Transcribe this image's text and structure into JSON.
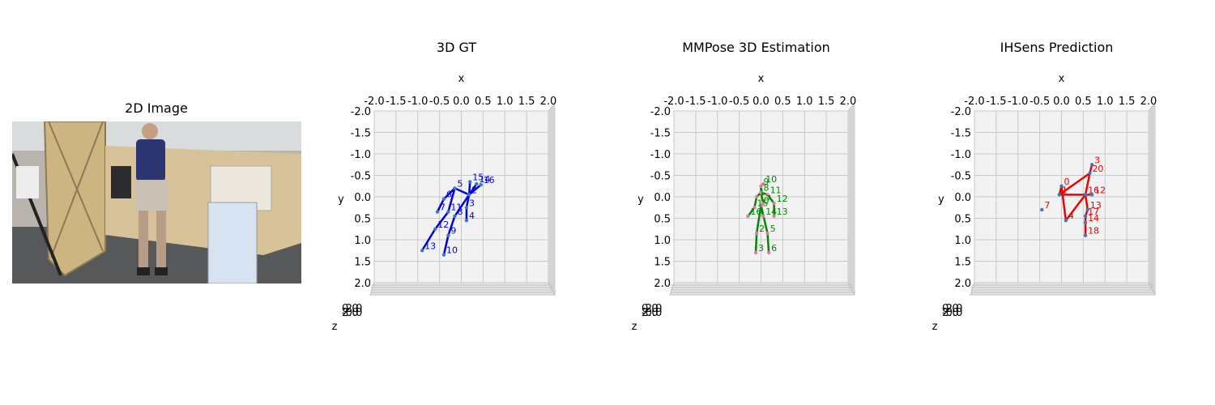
{
  "image_panel": {
    "title": "2D Image"
  },
  "chart_data": [
    {
      "type": "scatter",
      "title": "3D GT",
      "xlabel": "x",
      "ylabel": "y",
      "zlabel": "z",
      "xlim": [
        -2.0,
        2.0
      ],
      "ylim": [
        -2.0,
        2.0
      ],
      "ticks": [
        "-2.0",
        "-1.5",
        "-1.0",
        "-0.5",
        "0.0",
        "0.5",
        "1.0",
        "1.5",
        "2.0"
      ],
      "grid": true,
      "color": "#0000dd",
      "points": [
        {
          "label": "2",
          "x": 0.18,
          "y": -0.05
        },
        {
          "label": "3",
          "x": 0.12,
          "y": 0.25
        },
        {
          "label": "4",
          "x": 0.12,
          "y": 0.55
        },
        {
          "label": "5",
          "x": -0.15,
          "y": -0.2
        },
        {
          "label": "6",
          "x": -0.4,
          "y": 0.05
        },
        {
          "label": "7",
          "x": -0.55,
          "y": 0.35
        },
        {
          "label": "8",
          "x": -0.15,
          "y": 0.45
        },
        {
          "label": "9",
          "x": -0.3,
          "y": 0.9
        },
        {
          "label": "10",
          "x": -0.4,
          "y": 1.35
        },
        {
          "label": "11",
          "x": -0.3,
          "y": 0.35
        },
        {
          "label": "12",
          "x": -0.6,
          "y": 0.75
        },
        {
          "label": "13",
          "x": -0.9,
          "y": 1.25
        },
        {
          "label": "14",
          "x": 0.35,
          "y": -0.3
        },
        {
          "label": "15",
          "x": 0.2,
          "y": -0.35
        },
        {
          "label": "16",
          "x": 0.45,
          "y": -0.28
        }
      ],
      "edges": [
        [
          "5",
          "2"
        ],
        [
          "2",
          "3"
        ],
        [
          "3",
          "4"
        ],
        [
          "5",
          "6"
        ],
        [
          "6",
          "7"
        ],
        [
          "2",
          "8"
        ],
        [
          "8",
          "9"
        ],
        [
          "9",
          "10"
        ],
        [
          "5",
          "11"
        ],
        [
          "11",
          "12"
        ],
        [
          "12",
          "13"
        ],
        [
          "2",
          "14"
        ],
        [
          "2",
          "15"
        ],
        [
          "2",
          "16"
        ]
      ]
    },
    {
      "type": "scatter",
      "title": "MMPose 3D Estimation",
      "xlabel": "x",
      "ylabel": "y",
      "zlabel": "z",
      "xlim": [
        -2.0,
        2.0
      ],
      "ylim": [
        -2.0,
        2.0
      ],
      "ticks": [
        "-2.0",
        "-1.5",
        "-1.0",
        "-0.5",
        "0.0",
        "0.5",
        "1.0",
        "1.5",
        "2.0"
      ],
      "grid": true,
      "color": "#008800",
      "points": [
        {
          "label": "10",
          "x": 0.05,
          "y": -0.3
        },
        {
          "label": "9",
          "x": 0.0,
          "y": -0.25
        },
        {
          "label": "8",
          "x": 0.0,
          "y": -0.1
        },
        {
          "label": "11",
          "x": 0.15,
          "y": -0.05
        },
        {
          "label": "1",
          "x": -0.1,
          "y": 0.0
        },
        {
          "label": "0",
          "x": 0.0,
          "y": 0.2
        },
        {
          "label": "7",
          "x": 0.05,
          "y": 0.15
        },
        {
          "label": "12",
          "x": 0.3,
          "y": 0.15
        },
        {
          "label": "13",
          "x": 0.3,
          "y": 0.45
        },
        {
          "label": "14",
          "x": 0.05,
          "y": 0.45
        },
        {
          "label": "15",
          "x": -0.15,
          "y": 0.25
        },
        {
          "label": "16",
          "x": -0.3,
          "y": 0.45
        },
        {
          "label": "2",
          "x": -0.1,
          "y": 0.85
        },
        {
          "label": "3",
          "x": -0.12,
          "y": 1.3
        },
        {
          "label": "5",
          "x": 0.15,
          "y": 0.85
        },
        {
          "label": "6",
          "x": 0.18,
          "y": 1.3
        }
      ],
      "edges": [
        [
          "10",
          "9"
        ],
        [
          "9",
          "8"
        ],
        [
          "8",
          "11"
        ],
        [
          "11",
          "12"
        ],
        [
          "12",
          "13"
        ],
        [
          "8",
          "1"
        ],
        [
          "1",
          "15"
        ],
        [
          "15",
          "16"
        ],
        [
          "8",
          "7"
        ],
        [
          "7",
          "0"
        ],
        [
          "0",
          "2"
        ],
        [
          "2",
          "3"
        ],
        [
          "0",
          "5"
        ],
        [
          "5",
          "6"
        ],
        [
          "0",
          "14"
        ]
      ]
    },
    {
      "type": "scatter",
      "title": "IHSens Prediction",
      "xlabel": "x",
      "ylabel": "y",
      "zlabel": "z",
      "xlim": [
        -2.0,
        2.0
      ],
      "ylim": [
        -2.0,
        2.0
      ],
      "ticks": [
        "-2.0",
        "-1.5",
        "-1.0",
        "-0.5",
        "0.0",
        "0.5",
        "1.0",
        "1.5",
        "2.0"
      ],
      "grid": true,
      "color": "#ee0000",
      "points": [
        {
          "label": "3",
          "x": 0.7,
          "y": -0.75
        },
        {
          "label": "20",
          "x": 0.65,
          "y": -0.55
        },
        {
          "label": "0",
          "x": 0.0,
          "y": -0.25
        },
        {
          "label": "1",
          "x": -0.05,
          "y": -0.05
        },
        {
          "label": "16",
          "x": 0.55,
          "y": -0.05
        },
        {
          "label": "12",
          "x": 0.7,
          "y": -0.05
        },
        {
          "label": "13",
          "x": 0.6,
          "y": 0.3
        },
        {
          "label": "17",
          "x": 0.55,
          "y": 0.45
        },
        {
          "label": "14",
          "x": 0.55,
          "y": 0.6
        },
        {
          "label": "18",
          "x": 0.55,
          "y": 0.9
        },
        {
          "label": "7",
          "x": -0.45,
          "y": 0.3
        },
        {
          "label": "4",
          "x": 0.1,
          "y": 0.55
        }
      ],
      "edges": [
        [
          "3",
          "20"
        ],
        [
          "20",
          "1"
        ],
        [
          "1",
          "0"
        ],
        [
          "0",
          "4"
        ],
        [
          "4",
          "16"
        ],
        [
          "20",
          "16"
        ],
        [
          "16",
          "12"
        ],
        [
          "16",
          "13"
        ],
        [
          "13",
          "17"
        ],
        [
          "17",
          "14"
        ],
        [
          "14",
          "18"
        ],
        [
          "1",
          "16"
        ]
      ]
    }
  ]
}
